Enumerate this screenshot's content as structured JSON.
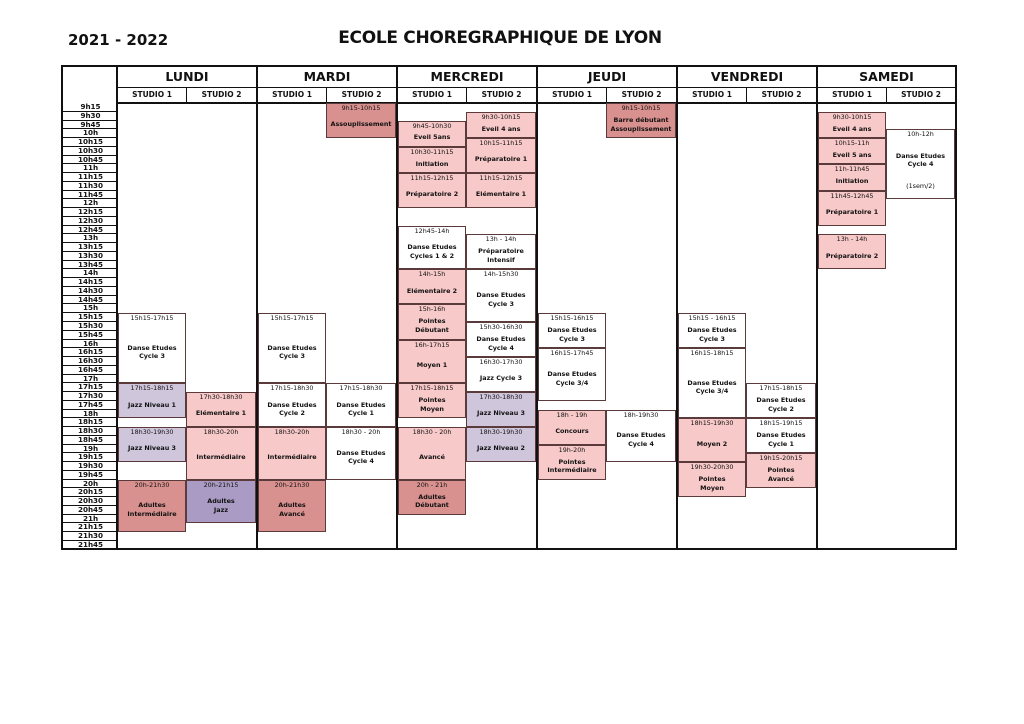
{
  "header": {
    "year": "2021 - 2022",
    "title": "ECOLE CHOREGRAPHIQUE DE LYON"
  },
  "colors": {
    "pink": "#f8c9c9",
    "rose": "#d9918f",
    "lavender": "#cfc6dc",
    "purple": "#a99bc4",
    "white": "#ffffff"
  },
  "times": [
    "9h15",
    "9h30",
    "9h45",
    "10h",
    "10h15",
    "10h30",
    "10h45",
    "11h",
    "11h15",
    "11h30",
    "11h45",
    "12h",
    "12h15",
    "12h30",
    "12h45",
    "13h",
    "13h15",
    "13h30",
    "13h45",
    "14h",
    "14h15",
    "14h30",
    "14h45",
    "15h",
    "15h15",
    "15h30",
    "15h45",
    "16h",
    "16h15",
    "16h30",
    "16h45",
    "17h",
    "17h15",
    "17h30",
    "17h45",
    "18h",
    "18h15",
    "18h30",
    "18h45",
    "19h",
    "19h15",
    "19h30",
    "19h45",
    "20h",
    "20h15",
    "20h30",
    "20h45",
    "21h",
    "21h15",
    "21h30",
    "21h45"
  ],
  "days": [
    {
      "name": "LUNDI",
      "studios": [
        {
          "label": "STUDIO 1",
          "blocks": [
            {
              "time": "15h15-17h15",
              "title": "Danse Etudes\nCycle 3",
              "start": "15h15",
              "end": "17h15",
              "color": "white"
            },
            {
              "time": "17h15-18h15",
              "title": "Jazz Niveau 1",
              "start": "17h15",
              "end": "18h15",
              "color": "lavender"
            },
            {
              "time": "18h30-19h30",
              "title": "Jazz Niveau 3",
              "start": "18h30",
              "end": "19h30",
              "color": "lavender"
            },
            {
              "time": "20h-21h30",
              "title": "Adultes\nIntermédiaire",
              "start": "20h",
              "end": "21h30",
              "color": "rose"
            }
          ]
        },
        {
          "label": "STUDIO 2",
          "blocks": [
            {
              "time": "17h30-18h30",
              "title": "Elémentaire 1",
              "start": "17h30",
              "end": "18h30",
              "color": "pink"
            },
            {
              "time": "18h30-20h",
              "title": "Intermédiaire",
              "start": "18h30",
              "end": "20h",
              "color": "pink"
            },
            {
              "time": "20h-21h15",
              "title": "Adultes\nJazz",
              "start": "20h",
              "end": "21h15",
              "color": "purple"
            }
          ]
        }
      ]
    },
    {
      "name": "MARDI",
      "studios": [
        {
          "label": "STUDIO 1",
          "blocks": [
            {
              "time": "15h15-17h15",
              "title": "Danse Etudes\nCycle 3",
              "start": "15h15",
              "end": "17h15",
              "color": "white"
            },
            {
              "time": "17h15-18h30",
              "title": "Danse Etudes\nCycle 2",
              "start": "17h15",
              "end": "18h30",
              "color": "white"
            },
            {
              "time": "18h30-20h",
              "title": "Intermédiaire",
              "start": "18h30",
              "end": "20h",
              "color": "pink"
            },
            {
              "time": "20h-21h30",
              "title": "Adultes\nAvancé",
              "start": "20h",
              "end": "21h30",
              "color": "rose"
            }
          ]
        },
        {
          "label": "STUDIO 2",
          "blocks": [
            {
              "time": "9h15-10h15",
              "title": "Assouplissement",
              "start": "9h15",
              "end": "10h15",
              "color": "rose"
            },
            {
              "time": "17h15-18h30",
              "title": "Danse Etudes\nCycle 1",
              "start": "17h15",
              "end": "18h30",
              "color": "white"
            },
            {
              "time": "18h30 - 20h",
              "title": "Danse Etudes\nCycle 4",
              "start": "18h30",
              "end": "20h",
              "color": "white"
            }
          ]
        }
      ]
    },
    {
      "name": "MERCREDI",
      "studios": [
        {
          "label": "STUDIO 1",
          "blocks": [
            {
              "time": "9h45-10h30",
              "title": "Eveil 5ans",
              "start": "9h45",
              "end": "10h30",
              "color": "pink"
            },
            {
              "time": "10h30-11h15",
              "title": "Initiation",
              "start": "10h30",
              "end": "11h15",
              "color": "pink"
            },
            {
              "time": "11h15-12h15",
              "title": "Préparatoire 2",
              "start": "11h15",
              "end": "12h15",
              "color": "pink"
            },
            {
              "time": "12h45-14h",
              "title": "Danse Etudes\nCycles 1 & 2",
              "start": "12h45",
              "end": "14h",
              "color": "white"
            },
            {
              "time": "14h-15h",
              "title": "Elémentaire 2",
              "start": "14h",
              "end": "15h",
              "color": "pink"
            },
            {
              "time": "15h-16h",
              "title": "Pointes\nDébutant",
              "start": "15h",
              "end": "16h",
              "color": "pink"
            },
            {
              "time": "16h-17h15",
              "title": "Moyen 1",
              "start": "16h",
              "end": "17h15",
              "color": "pink"
            },
            {
              "time": "17h15-18h15",
              "title": "Pointes\nMoyen",
              "start": "17h15",
              "end": "18h15",
              "color": "pink"
            },
            {
              "time": "18h30 - 20h",
              "title": "Avancé",
              "start": "18h30",
              "end": "20h",
              "color": "pink"
            },
            {
              "time": "20h - 21h",
              "title": "Adultes\nDébutant",
              "start": "20h",
              "end": "21h",
              "color": "rose"
            }
          ]
        },
        {
          "label": "STUDIO 2",
          "blocks": [
            {
              "time": "9h30-10h15",
              "title": "Eveil 4 ans",
              "start": "9h30",
              "end": "10h15",
              "color": "pink"
            },
            {
              "time": "10h15-11h15",
              "title": "Préparatoire 1",
              "start": "10h15",
              "end": "11h15",
              "color": "pink"
            },
            {
              "time": "11h15-12h15",
              "title": "Elémentaire 1",
              "start": "11h15",
              "end": "12h15",
              "color": "pink"
            },
            {
              "time": "13h - 14h",
              "title": "Préparatoire\nIntensif",
              "start": "13h",
              "end": "14h",
              "color": "white"
            },
            {
              "time": "14h-15h30",
              "title": "Danse Etudes\nCycle 3",
              "start": "14h",
              "end": "15h30",
              "color": "white"
            },
            {
              "time": "15h30-16h30",
              "title": "Danse Etudes\nCycle 4",
              "start": "15h30",
              "end": "16h30",
              "color": "white"
            },
            {
              "time": "16h30-17h30",
              "title": "Jazz Cycle 3",
              "start": "16h30",
              "end": "17h30",
              "color": "white"
            },
            {
              "time": "17h30-18h30",
              "title": "Jazz Niveau 3",
              "start": "17h30",
              "end": "18h30",
              "color": "lavender"
            },
            {
              "time": "18h30-19h30",
              "title": "Jazz Niveau 2",
              "start": "18h30",
              "end": "19h30",
              "color": "lavender"
            }
          ]
        }
      ]
    },
    {
      "name": "JEUDI",
      "studios": [
        {
          "label": "STUDIO 1",
          "blocks": [
            {
              "time": "15h15-16h15",
              "title": "Danse Etudes\nCycle 3",
              "start": "15h15",
              "end": "16h15",
              "color": "white"
            },
            {
              "time": "16h15-17h45",
              "title": "Danse Etudes\nCycle 3/4",
              "start": "16h15",
              "end": "17h45",
              "color": "white"
            },
            {
              "time": "18h - 19h",
              "title": "Concours",
              "start": "18h",
              "end": "19h",
              "color": "pink"
            },
            {
              "time": "19h-20h",
              "title": "Pointes\nIntermédiaire",
              "start": "19h",
              "end": "20h",
              "color": "pink"
            }
          ]
        },
        {
          "label": "STUDIO 2",
          "blocks": [
            {
              "time": "9h15-10h15",
              "title": "Barre débutant\nAssouplissement",
              "start": "9h15",
              "end": "10h15",
              "color": "rose"
            },
            {
              "time": "18h-19h30",
              "title": "Danse Etudes\nCycle 4",
              "start": "18h",
              "end": "19h30",
              "color": "white"
            }
          ]
        }
      ]
    },
    {
      "name": "VENDREDI",
      "studios": [
        {
          "label": "STUDIO 1",
          "blocks": [
            {
              "time": "15h15 - 16h15",
              "title": "Danse Etudes\nCycle 3",
              "start": "15h15",
              "end": "16h15",
              "color": "white"
            },
            {
              "time": "16h15-18h15",
              "title": "Danse Etudes\nCycle 3/4",
              "start": "16h15",
              "end": "18h15",
              "color": "white"
            },
            {
              "time": "18h15-19h30",
              "title": "Moyen 2",
              "start": "18h15",
              "end": "19h30",
              "color": "pink"
            },
            {
              "time": "19h30-20h30",
              "title": "Pointes\nMoyen",
              "start": "19h30",
              "end": "20h30",
              "color": "pink"
            }
          ]
        },
        {
          "label": "STUDIO 2",
          "blocks": [
            {
              "time": "17h15-18h15",
              "title": "Danse Etudes\nCycle 2",
              "start": "17h15",
              "end": "18h15",
              "color": "white"
            },
            {
              "time": "18h15-19h15",
              "title": "Danse Etudes\nCycle 1",
              "start": "18h15",
              "end": "19h15",
              "color": "white"
            },
            {
              "time": "19h15-20h15",
              "title": "Pointes\nAvancé",
              "start": "19h15",
              "end": "20h15",
              "color": "pink"
            }
          ]
        }
      ]
    },
    {
      "name": "SAMEDI",
      "studios": [
        {
          "label": "STUDIO 1",
          "blocks": [
            {
              "time": "9h30-10h15",
              "title": "Eveil 4 ans",
              "start": "9h30",
              "end": "10h15",
              "color": "pink"
            },
            {
              "time": "10h15-11h",
              "title": "Eveil 5 ans",
              "start": "10h15",
              "end": "11h",
              "color": "pink"
            },
            {
              "time": "11h-11h45",
              "title": "Initiation",
              "start": "11h",
              "end": "11h45",
              "color": "pink"
            },
            {
              "time": "11h45-12h45",
              "title": "Préparatoire 1",
              "start": "11h45",
              "end": "12h45",
              "color": "pink"
            },
            {
              "time": "13h - 14h",
              "title": "Préparatoire 2",
              "start": "13h",
              "end": "14h",
              "color": "pink"
            }
          ]
        },
        {
          "label": "STUDIO 2",
          "blocks": [
            {
              "time": "10h-12h",
              "title": "Danse Etudes\nCycle 4",
              "note": "(1sem/2)",
              "start": "10h",
              "end": "12h",
              "color": "white"
            }
          ]
        }
      ]
    }
  ]
}
